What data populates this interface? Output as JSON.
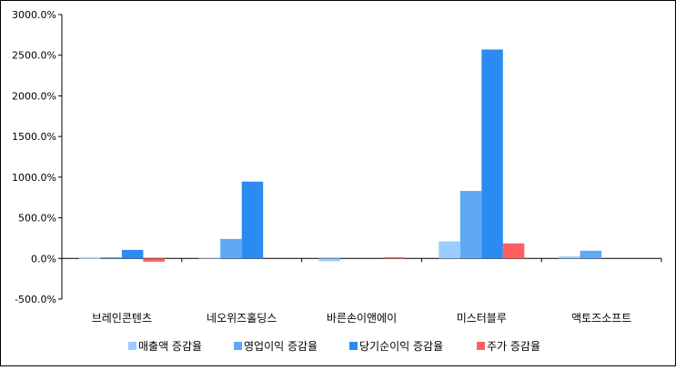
{
  "chart_data": {
    "type": "bar",
    "title": "",
    "xlabel": "",
    "ylabel": "",
    "categories": [
      "브레인콘텐츠",
      "네오위즈홀딩스",
      "바른손이앤에이",
      "미스터블루",
      "액토즈소프트"
    ],
    "ylim": [
      -500,
      3000
    ],
    "yticks": [
      -500,
      0,
      500,
      1000,
      1500,
      2000,
      2500,
      3000
    ],
    "ytick_labels": [
      "-500.0%",
      "0.0%",
      "500.0%",
      "1000.0%",
      "1500.0%",
      "2000.0%",
      "2500.0%",
      "3000.0%"
    ],
    "grid": false,
    "legend_position": "bottom",
    "series": [
      {
        "name": "매출액 증감율",
        "color": "#99ccff",
        "values": [
          5,
          10,
          -35,
          210,
          25
        ]
      },
      {
        "name": "영업이익 증감율",
        "color": "#5fa8f5",
        "values": [
          15,
          240,
          0,
          830,
          95
        ]
      },
      {
        "name": "당기순이익 증감율",
        "color": "#2b8bf2",
        "values": [
          105,
          945,
          0,
          2570,
          0
        ]
      },
      {
        "name": "주가 증감율",
        "color": "#ff5f5f",
        "values": [
          -40,
          0,
          15,
          185,
          0
        ]
      }
    ]
  }
}
